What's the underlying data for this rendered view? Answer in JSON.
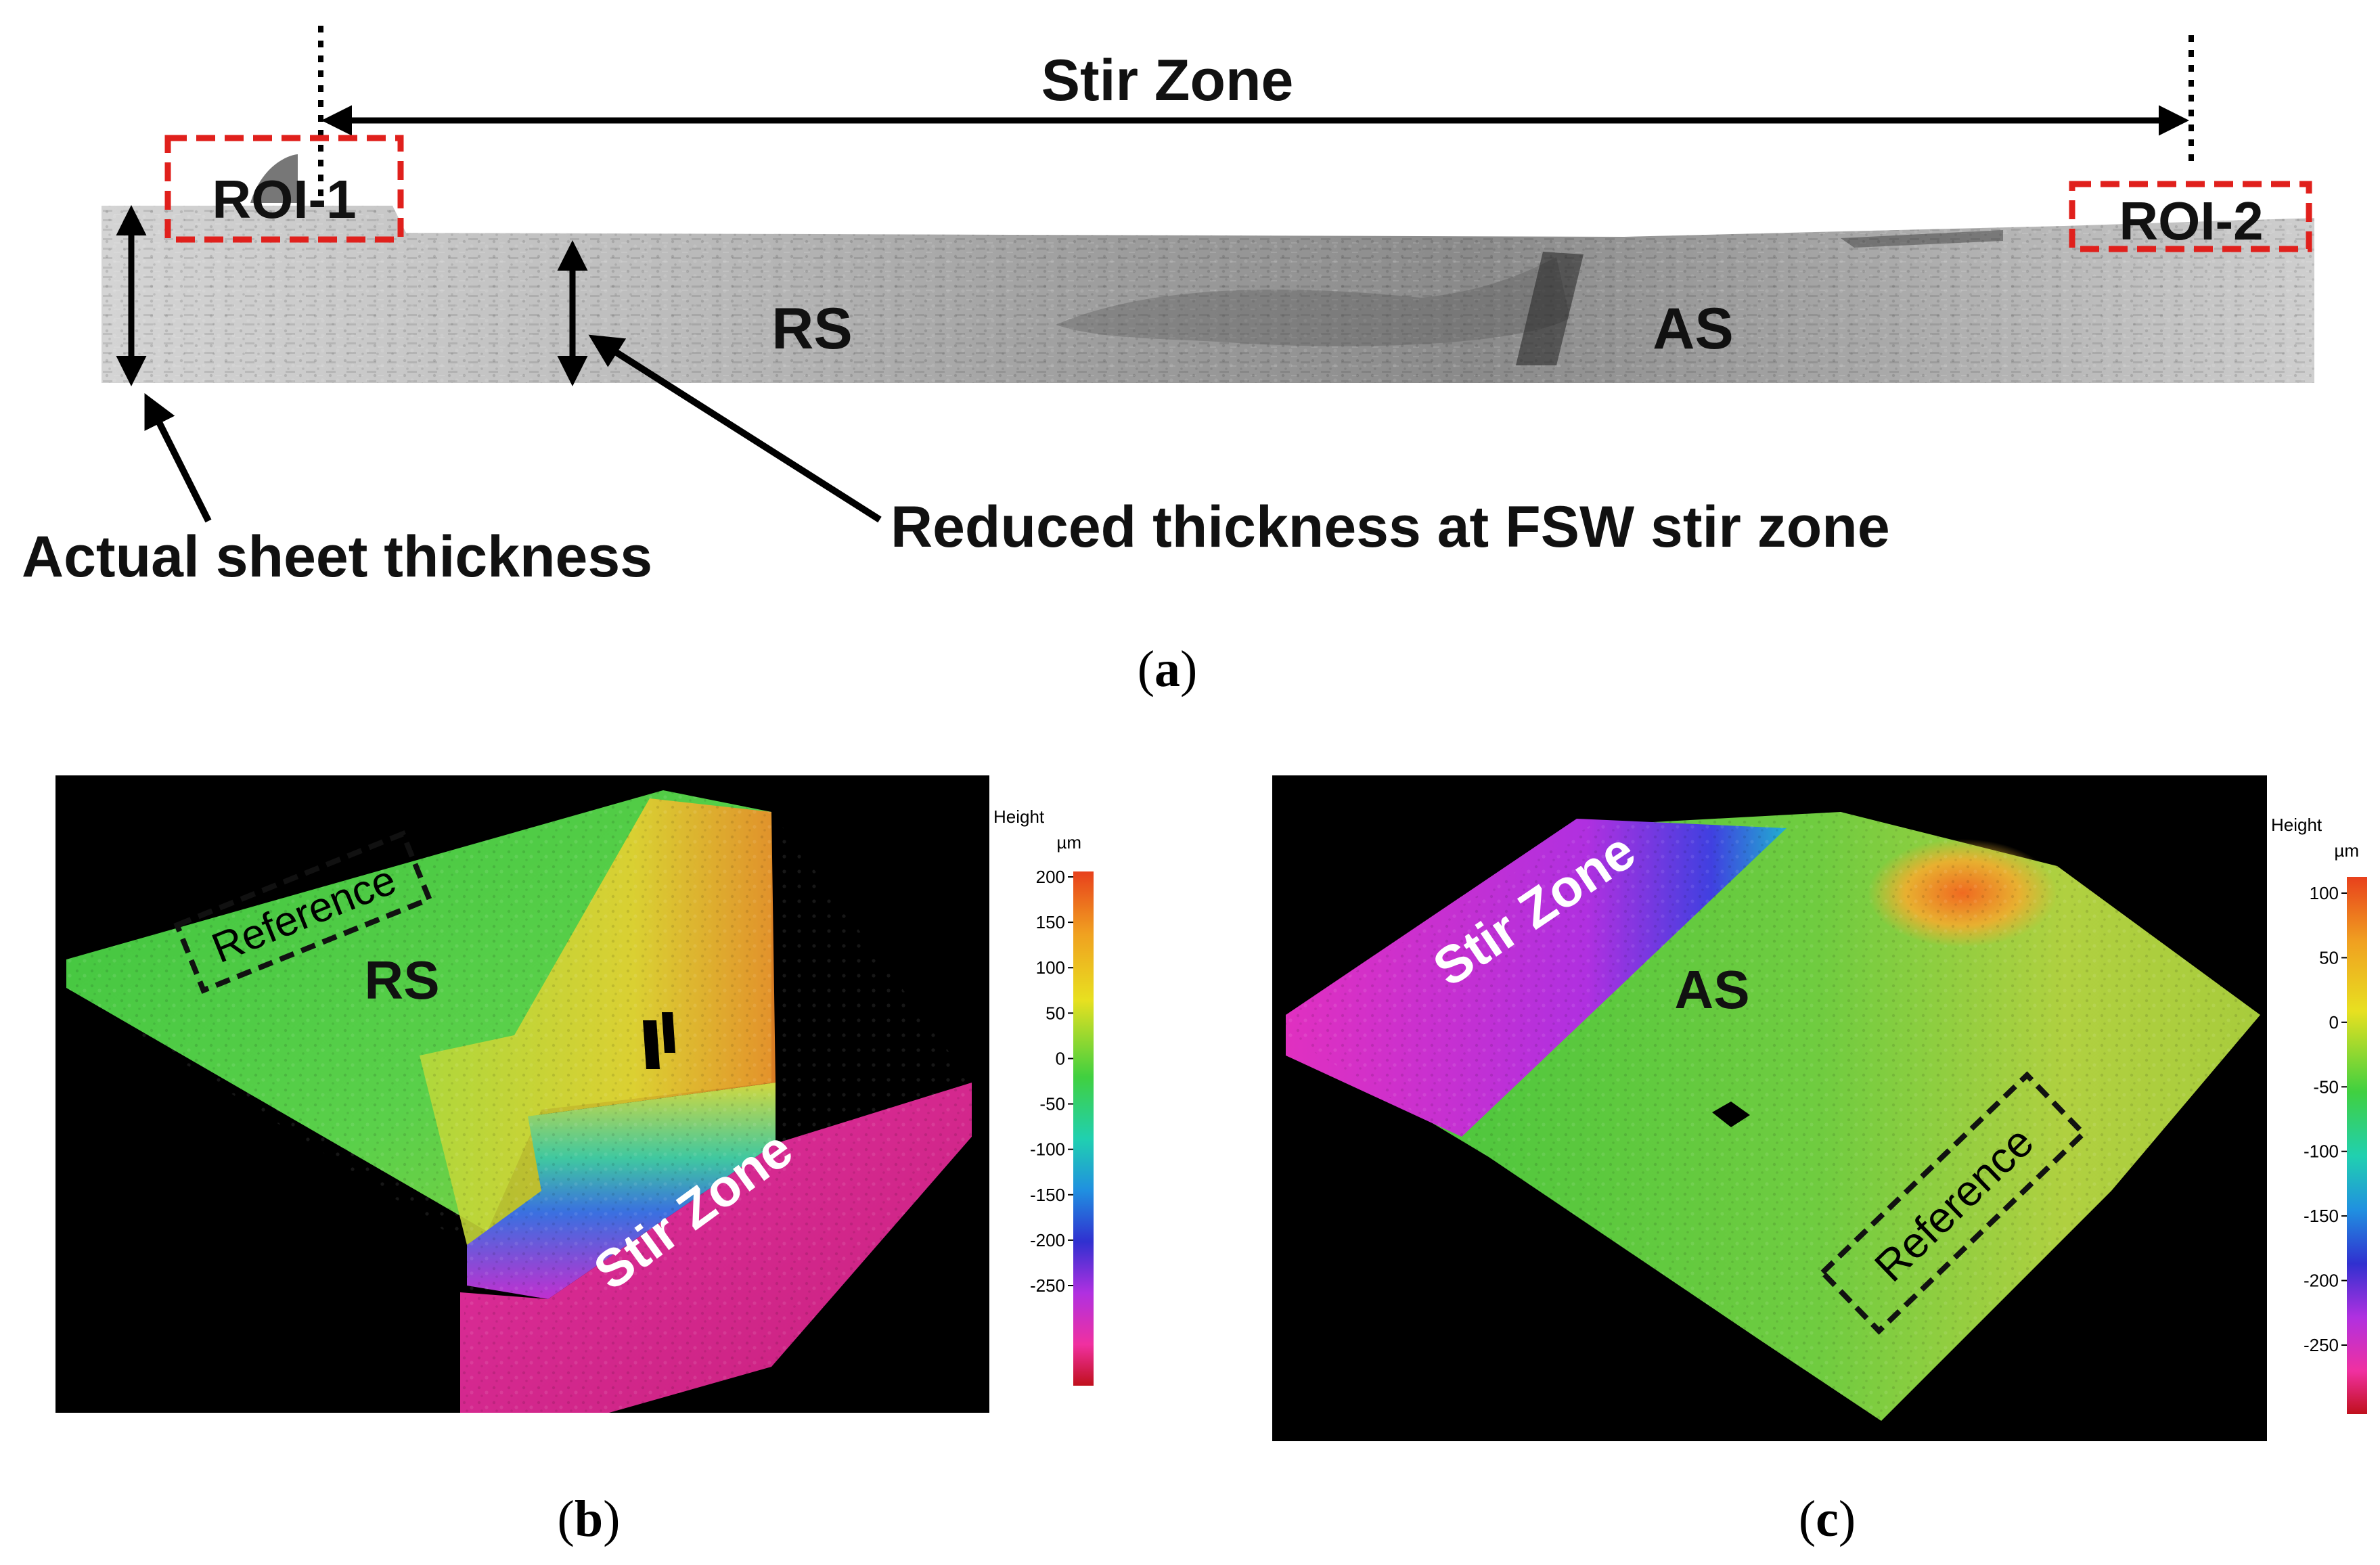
{
  "panel_a": {
    "stir_zone_label": "Stir Zone",
    "roi1_label": "ROI-1",
    "roi2_label": "ROI-2",
    "rs_label": "RS",
    "as_label": "AS",
    "actual_thickness_label": "Actual sheet thickness",
    "reduced_thickness_label": "Reduced thickness at FSW stir zone",
    "caption_letter": "a"
  },
  "panel_b": {
    "reference_label": "Reference",
    "rs_label": "RS",
    "stir_zone_label": "Stir Zone",
    "caption_letter": "b",
    "colorbar": {
      "title": "Height",
      "unit": "µm",
      "ticks": [
        "200",
        "150",
        "100",
        "50",
        "0",
        "-50",
        "-100",
        "-150",
        "-200",
        "-250"
      ]
    }
  },
  "panel_c": {
    "reference_label": "Reference",
    "as_label": "AS",
    "stir_zone_label": "Stir Zone",
    "caption_letter": "c",
    "colorbar": {
      "title": "Height",
      "unit": "µm",
      "ticks": [
        "100",
        "50",
        "0",
        "-50",
        "-100",
        "-150",
        "-200",
        "-250"
      ]
    }
  },
  "colors": {
    "roi_box": "#e0201c",
    "arrow": "#000000",
    "surface_high": "#e85a1c",
    "surface_mid": "#3cc43c",
    "surface_low": "#e0208c"
  }
}
